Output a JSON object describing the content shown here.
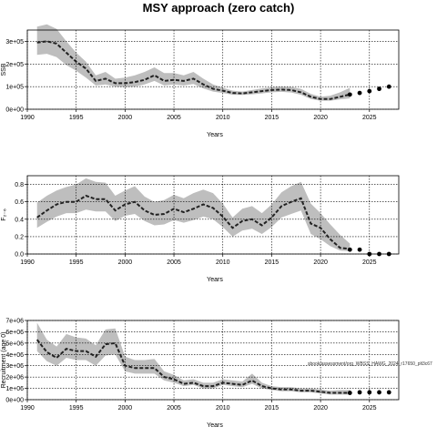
{
  "page": {
    "title": "MSY approach (zero catch)"
  },
  "chart_data": [
    {
      "type": "line",
      "panel": "ssb",
      "ylabel": "SSB",
      "xlabel": "Years",
      "x": [
        1991,
        1992,
        1993,
        1994,
        1995,
        1996,
        1997,
        1998,
        1999,
        2000,
        2001,
        2002,
        2003,
        2004,
        2005,
        2006,
        2007,
        2008,
        2009,
        2010,
        2011,
        2012,
        2013,
        2014,
        2015,
        2016,
        2017,
        2018,
        2019,
        2020,
        2021,
        2022,
        2023
      ],
      "median": [
        295000,
        300000,
        290000,
        250000,
        210000,
        180000,
        125000,
        135000,
        115000,
        115000,
        120000,
        130000,
        150000,
        125000,
        130000,
        125000,
        135000,
        110000,
        90000,
        82000,
        72000,
        70000,
        75000,
        80000,
        85000,
        87000,
        85000,
        75000,
        55000,
        45000,
        45000,
        55000,
        65000
      ],
      "lower": [
        240000,
        245000,
        230000,
        195000,
        170000,
        140000,
        105000,
        110000,
        100000,
        98000,
        100000,
        110000,
        125000,
        105000,
        110000,
        105000,
        112000,
        92000,
        78000,
        72000,
        64000,
        63000,
        66000,
        70000,
        75000,
        77000,
        74000,
        64000,
        45000,
        38000,
        38000,
        44000,
        48000
      ],
      "upper": [
        365000,
        375000,
        355000,
        300000,
        250000,
        210000,
        150000,
        165000,
        135000,
        140000,
        150000,
        165000,
        185000,
        160000,
        160000,
        150000,
        165000,
        135000,
        110000,
        95000,
        82000,
        78000,
        85000,
        92000,
        97000,
        100000,
        98000,
        90000,
        68000,
        55000,
        60000,
        75000,
        95000
      ],
      "projection": {
        "x": [
          2023,
          2024,
          2025,
          2026,
          2027
        ],
        "values": [
          65000,
          72000,
          80000,
          90000,
          100000
        ]
      },
      "xlim": [
        1990,
        2028
      ],
      "ylim": [
        0,
        350000
      ],
      "xticks": [
        1990,
        1995,
        2000,
        2005,
        2010,
        2015,
        2020,
        2025
      ],
      "xtick_labels": [
        "1990",
        "1995",
        "2000",
        "2005",
        "2010",
        "2015",
        "2020",
        "2025"
      ],
      "yticks": [
        0,
        100000,
        200000,
        300000
      ],
      "ytick_labels": [
        "0e+00",
        "1e+05",
        "2e+05",
        "3e+05"
      ],
      "grid": true
    },
    {
      "type": "line",
      "panel": "f",
      "ylabel": "F₂₋₆",
      "xlabel": "Years",
      "x": [
        1991,
        1992,
        1993,
        1994,
        1995,
        1996,
        1997,
        1998,
        1999,
        2000,
        2001,
        2002,
        2003,
        2004,
        2005,
        2006,
        2007,
        2008,
        2009,
        2010,
        2011,
        2012,
        2013,
        2014,
        2015,
        2016,
        2017,
        2018,
        2019,
        2020,
        2021,
        2022,
        2023
      ],
      "median": [
        0.42,
        0.5,
        0.57,
        0.6,
        0.6,
        0.67,
        0.63,
        0.63,
        0.5,
        0.57,
        0.6,
        0.5,
        0.45,
        0.46,
        0.52,
        0.48,
        0.52,
        0.57,
        0.53,
        0.43,
        0.3,
        0.38,
        0.4,
        0.33,
        0.42,
        0.55,
        0.6,
        0.64,
        0.35,
        0.3,
        0.17,
        0.07,
        0.06
      ],
      "lower": [
        0.3,
        0.37,
        0.43,
        0.47,
        0.47,
        0.51,
        0.49,
        0.49,
        0.38,
        0.44,
        0.46,
        0.38,
        0.33,
        0.34,
        0.39,
        0.36,
        0.39,
        0.43,
        0.4,
        0.31,
        0.2,
        0.27,
        0.29,
        0.23,
        0.31,
        0.42,
        0.46,
        0.5,
        0.23,
        0.17,
        0.09,
        0.04,
        0.03
      ],
      "upper": [
        0.59,
        0.67,
        0.73,
        0.77,
        0.8,
        0.87,
        0.83,
        0.82,
        0.67,
        0.73,
        0.78,
        0.66,
        0.6,
        0.62,
        0.68,
        0.64,
        0.7,
        0.74,
        0.7,
        0.58,
        0.42,
        0.52,
        0.55,
        0.47,
        0.57,
        0.71,
        0.78,
        0.83,
        0.58,
        0.47,
        0.34,
        0.22,
        0.12
      ],
      "projection": {
        "x": [
          2023,
          2024,
          2025,
          2026,
          2027
        ],
        "values": [
          0.05,
          0.05,
          0.0,
          0.0,
          0.0
        ]
      },
      "xlim": [
        1990,
        2028
      ],
      "ylim": [
        0,
        0.9
      ],
      "xticks": [
        1990,
        1995,
        2000,
        2005,
        2010,
        2015,
        2020,
        2025
      ],
      "xtick_labels": [
        "1990",
        "1995",
        "2000",
        "2005",
        "2010",
        "2015",
        "2020",
        "2025"
      ],
      "yticks": [
        0.0,
        0.2,
        0.4,
        0.6,
        0.8
      ],
      "ytick_labels": [
        "0.0",
        "0.2",
        "0.4",
        "0.6",
        "0.8"
      ],
      "grid": true
    },
    {
      "type": "line",
      "panel": "recruitment",
      "ylabel": "Recruitment (age 0)",
      "xlabel": "Years",
      "annotation": "sbook/assessment/org_WBSS_HAWG_2024_r17650_plt3c67",
      "x": [
        1991,
        1992,
        1993,
        1994,
        1995,
        1996,
        1997,
        1998,
        1999,
        2000,
        2001,
        2002,
        2003,
        2004,
        2005,
        2006,
        2007,
        2008,
        2009,
        2010,
        2011,
        2012,
        2013,
        2014,
        2015,
        2016,
        2017,
        2018,
        2019,
        2020,
        2021,
        2022,
        2023
      ],
      "median": [
        5300000,
        4200000,
        3700000,
        4500000,
        4300000,
        4300000,
        3800000,
        4900000,
        5000000,
        3000000,
        2800000,
        2800000,
        2800000,
        2000000,
        1800000,
        1400000,
        1500000,
        1200000,
        1200000,
        1500000,
        1400000,
        1300000,
        1700000,
        1200000,
        1000000,
        900000,
        900000,
        800000,
        800000,
        700000,
        600000,
        600000,
        600000
      ],
      "lower": [
        4300000,
        3400000,
        3000000,
        3700000,
        3500000,
        3500000,
        3000000,
        3900000,
        4000000,
        2500000,
        2300000,
        2300000,
        2300000,
        1700000,
        1500000,
        1200000,
        1300000,
        1000000,
        1000000,
        1300000,
        1200000,
        1100000,
        1400000,
        1000000,
        850000,
        750000,
        750000,
        650000,
        650000,
        550000,
        450000,
        450000,
        450000
      ],
      "upper": [
        6800000,
        5300000,
        4700000,
        5800000,
        5500000,
        5400000,
        4800000,
        6200000,
        6300000,
        3800000,
        3500000,
        3500000,
        3600000,
        2500000,
        2200000,
        1700000,
        1800000,
        1500000,
        1500000,
        1800000,
        1700000,
        1600000,
        2300000,
        1500000,
        1200000,
        1100000,
        1100000,
        1000000,
        1000000,
        900000,
        800000,
        850000,
        850000
      ],
      "projection": {
        "x": [
          2023,
          2024,
          2025,
          2026,
          2027
        ],
        "values": [
          600000,
          650000,
          650000,
          650000,
          650000
        ]
      },
      "xlim": [
        1990,
        2028
      ],
      "ylim": [
        0,
        7000000
      ],
      "xticks": [
        1990,
        1995,
        2000,
        2005,
        2010,
        2015,
        2020,
        2025
      ],
      "xtick_labels": [
        "1990",
        "1995",
        "2000",
        "2005",
        "2010",
        "2015",
        "2020",
        "2025"
      ],
      "yticks": [
        0,
        1000000,
        2000000,
        3000000,
        4000000,
        5000000,
        6000000,
        7000000
      ],
      "ytick_labels": [
        "0e+00",
        "1e+06",
        "2e+06",
        "3e+06",
        "4e+06",
        "5e+06",
        "6e+06",
        "7e+06"
      ],
      "grid": true
    }
  ],
  "colors": {
    "band": "#bebebe",
    "line": "#222222",
    "grid": "#000000"
  }
}
